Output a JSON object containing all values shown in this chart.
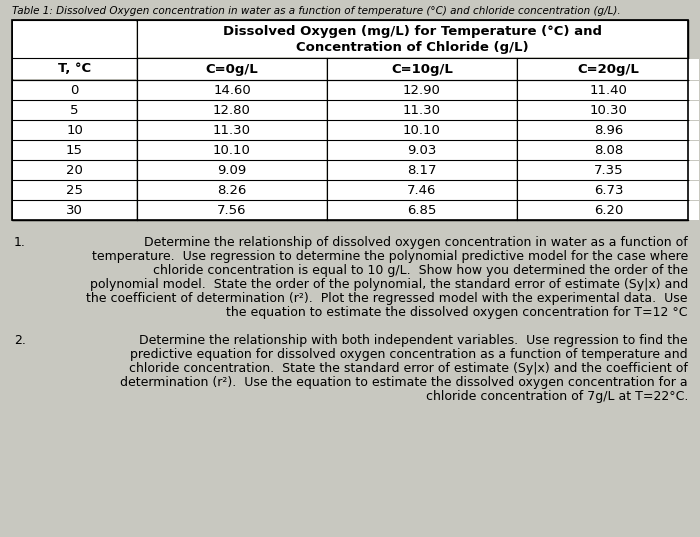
{
  "caption": "Table 1: Dissolved Oxygen concentration in water as a function of temperature (°C) and chloride concentration (g/L).",
  "table_header_main_line1": "Dissolved Oxygen (mg/L) for Temperature (°C) and",
  "table_header_main_line2": "Concentration of Chloride (g/L)",
  "col_headers": [
    "T, °C",
    "C=0g/L",
    "C=10g/L",
    "C=20g/L"
  ],
  "rows": [
    [
      "0",
      "14.60",
      "12.90",
      "11.40"
    ],
    [
      "5",
      "12.80",
      "11.30",
      "10.30"
    ],
    [
      "10",
      "11.30",
      "10.10",
      "8.96"
    ],
    [
      "15",
      "10.10",
      "9.03",
      "8.08"
    ],
    [
      "20",
      "9.09",
      "8.17",
      "7.35"
    ],
    [
      "25",
      "8.26",
      "7.46",
      "6.73"
    ],
    [
      "30",
      "7.56",
      "6.85",
      "6.20"
    ]
  ],
  "q1_lines": [
    "Determine the relationship of dissolved oxygen concentration in water as a function of",
    "temperature.  Use regression to determine the polynomial predictive model for the case where",
    "chloride concentration is equal to 10 g/L.  Show how you determined the order of the",
    "polynomial model.  State the order of the polynomial, the standard error of estimate (Sy|x) and",
    "the coefficient of determination (r²).  Plot the regressed model with the experimental data.  Use",
    "the equation to estimate the dissolved oxygen concentration for T=12 °C"
  ],
  "q2_lines": [
    "Determine the relationship with both independent variables.  Use regression to find the",
    "predictive equation for dissolved oxygen concentration as a function of temperature and",
    "chloride concentration.  State the standard error of estimate (Sy|x) and the coefficient of",
    "determination (r²).  Use the equation to estimate the dissolved oxygen concentration for a",
    "chloride concentration of 7g/L at T=22°C."
  ],
  "bg_color": "#c8c8c0",
  "cell_bg": "#ffffff",
  "caption_fontstyle": "italic",
  "caption_fontsize": 7.5,
  "header_fontsize": 9.5,
  "col_header_fontsize": 9.5,
  "data_fontsize": 9.5,
  "body_fontsize": 9.0
}
